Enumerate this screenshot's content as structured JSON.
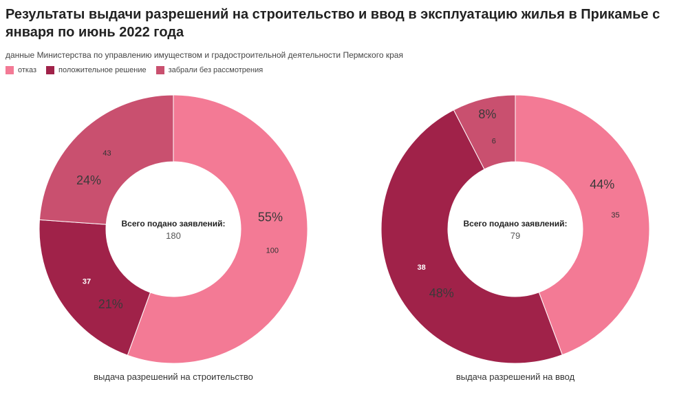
{
  "title": "Результаты выдачи разрешений на строительство и ввод в эксплуатацию жилья в Прикамье с января по июнь 2022 года",
  "subtitle": "данные Министерства по управлению имуществом и градостроительной деятельности Пермского края",
  "legend": [
    {
      "label": "отказ",
      "color": "#f37a95"
    },
    {
      "label": "положительное решение",
      "color": "#a02249"
    },
    {
      "label": "забрали без рассмотрения",
      "color": "#c9506f"
    }
  ],
  "chart_data": [
    {
      "type": "pie",
      "title": "выдача разрешений на строительство",
      "center_label": "Всего подано заявлений:",
      "total": "180",
      "categories": [
        "отказ",
        "положительное решение",
        "забрали без рассмотрения"
      ],
      "values": [
        100,
        37,
        43
      ],
      "percent_labels": [
        "55%",
        "21%",
        "24%"
      ]
    },
    {
      "type": "pie",
      "title": "выдача разрешений на ввод",
      "center_label": "Всего подано заявлений:",
      "total": "79",
      "categories": [
        "отказ",
        "положительное решение",
        "забрали без рассмотрения"
      ],
      "values": [
        35,
        38,
        6
      ],
      "percent_labels": [
        "44%",
        "48%",
        "8%"
      ]
    }
  ]
}
